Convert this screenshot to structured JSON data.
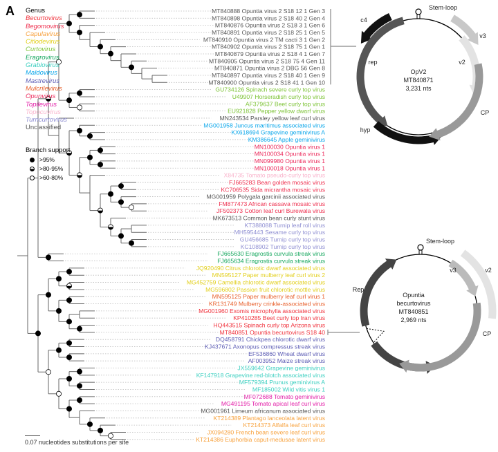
{
  "panel_label": "A",
  "legend": {
    "title": "Genus",
    "genera": [
      {
        "name": "Becurtovirus",
        "color": "#f0323c"
      },
      {
        "name": "Begomovirus",
        "color": "#ee2f4e"
      },
      {
        "name": "Capulavirus",
        "color": "#f7a13c"
      },
      {
        "name": "Citlodevirus",
        "color": "#e2cf1c"
      },
      {
        "name": "Curtovirus",
        "color": "#7dc336"
      },
      {
        "name": "Eragrovirus",
        "color": "#13a65c"
      },
      {
        "name": "Grablovirus",
        "color": "#3ccfc0"
      },
      {
        "name": "Maldovirus",
        "color": "#0aa6ea"
      },
      {
        "name": "Mastrevirus",
        "color": "#5c5cb4"
      },
      {
        "name": "Mulcrilevirus",
        "color": "#e8602c"
      },
      {
        "name": "Opunvirus",
        "color": "#ec2b5c"
      },
      {
        "name": "Topilevirus",
        "color": "#e21aa6"
      },
      {
        "name": "Topocuvirus",
        "color": "#f9b4cc"
      },
      {
        "name": "Turncurtovirus",
        "color": "#8f8fd2"
      },
      {
        "name": "Unclassified",
        "color": "#555555"
      }
    ]
  },
  "branch_support": {
    "title": "Branch support",
    "items": [
      {
        "symbol": "filled",
        "label": ">95%"
      },
      {
        "symbol": "half",
        "label": ">80-95%"
      },
      {
        "symbol": "open",
        "label": ">60-80%"
      }
    ]
  },
  "leaves": [
    [
      "MT840888 Opuntia virus 2 S18 12 1 Gen 3",
      "Unclassified"
    ],
    [
      "MT840898 Opuntia virus 2 S18 40 2 Gen 4",
      "Unclassified"
    ],
    [
      "MT840876 Opuntia virus 2 S18 3 1 Gen 6",
      "Unclassified"
    ],
    [
      "MT840891 Opuntia virus 2 S18 25 1 Gen 5",
      "Unclassified"
    ],
    [
      "MT840910 Opuntia virus 2 TM cacti 3 1 Gen 2",
      "Unclassified"
    ],
    [
      "MT840902 Opuntia virus 2 S18 75 1 Gen 1",
      "Unclassified"
    ],
    [
      "MT840879 Opuntia virus 2 S18 4 1 Gen 7",
      "Unclassified"
    ],
    [
      "MT840905 Opuntia virus 2 S18 75 4 Gen 11",
      "Unclassified"
    ],
    [
      "MT840871 Opuntia virus 2 DBG 56 Gen 8",
      "Unclassified"
    ],
    [
      "MT840897 Opuntia virus 2 S18 40 1 Gen 9",
      "Unclassified"
    ],
    [
      "MT840900 Opuntia virus 2 S18 41 1 Gen 10",
      "Unclassified"
    ],
    [
      "GU734126 Spinach severe curly top virus",
      "Curtovirus"
    ],
    [
      "U49907 Horseradish curly top virus",
      "Curtovirus"
    ],
    [
      "AF379637 Beet curly top virus",
      "Curtovirus"
    ],
    [
      "EU921828 Pepper yellow dwarf virus",
      "Curtovirus"
    ],
    [
      "MN243534 Parsley yellow leaf curl virus",
      "Unclassified"
    ],
    [
      "MG001958 Juncus maritimus associated virus",
      "Maldovirus"
    ],
    [
      "KX618694 Grapevine geminivirus A",
      "Maldovirus"
    ],
    [
      "KM386645 Apple geminivirus",
      "Maldovirus"
    ],
    [
      "MN100030 Opuntia virus 1",
      "Opunvirus"
    ],
    [
      "MN100034 Opuntia virus 1",
      "Opunvirus"
    ],
    [
      "MN099980 Opuntia virus 1",
      "Opunvirus"
    ],
    [
      "MN100018 Opuntia virus 1",
      "Opunvirus"
    ],
    [
      "X84735 Tomato pseudo-curly top virus",
      "Topocuvirus"
    ],
    [
      "FJ665283 Bean golden mosaic virus",
      "Begomovirus"
    ],
    [
      "KC706535 Sida micrantha mosaic virus",
      "Begomovirus"
    ],
    [
      "MG001959 Polygala garcinii associated virus",
      "Unclassified"
    ],
    [
      "FM877473 African cassava mosaic virus",
      "Begomovirus"
    ],
    [
      "JF502373 Cotton leaf curl Burewala virus",
      "Begomovirus"
    ],
    [
      "MK673513 Common bean curly stunt virus",
      "Unclassified"
    ],
    [
      "KT388088 Turnip leaf roll virus",
      "Turncurtovirus"
    ],
    [
      "MH595443 Sesame curly top virus",
      "Turncurtovirus"
    ],
    [
      "GU456685 Turnip curly top virus",
      "Turncurtovirus"
    ],
    [
      "KC108902 Turnip curly top virus",
      "Turncurtovirus"
    ],
    [
      "FJ665630 Eragrostis curvula streak virus",
      "Eragrovirus"
    ],
    [
      "FJ665634 Eragrostis curvula streak virus",
      "Eragrovirus"
    ],
    [
      "JQ920490 Citrus chlorotic dwarf associated virus",
      "Citlodevirus"
    ],
    [
      "MN595127 Paper mulberry leaf curl virus 2",
      "Citlodevirus"
    ],
    [
      "MG452759 Camellia chlorotic dwarf associated virus",
      "Citlodevirus"
    ],
    [
      "MG596802 Passion fruit chlorotic mottle virus",
      "Citlodevirus"
    ],
    [
      "MN595125 Paper mulberry leaf curl virus 1",
      "Mulcrilevirus"
    ],
    [
      "KR131749 Mulberry crinkle-associated virus",
      "Mulcrilevirus"
    ],
    [
      "MG001960 Exomis microphylla associated virus",
      "Becurtovirus"
    ],
    [
      "KP410285 Beet curly top Iran virus",
      "Becurtovirus"
    ],
    [
      "HQ443515 Spinach curly top Arizona virus",
      "Becurtovirus"
    ],
    [
      "MT840851 Opuntia becurtovirus S18 40",
      "Becurtovirus"
    ],
    [
      "DQ458791 Chickpea chlorotic dwarf virus",
      "Mastrevirus"
    ],
    [
      "KJ437671 Axonopus compressus streak virus",
      "Mastrevirus"
    ],
    [
      "EF536860 Wheat dwarf virus",
      "Mastrevirus"
    ],
    [
      "AF003952 Maize streak virus",
      "Mastrevirus"
    ],
    [
      "JX559642 Grapevine geminivirus",
      "Grablovirus"
    ],
    [
      "KF147918 Grapevine red-blotch associated virus",
      "Grablovirus"
    ],
    [
      "MF579394 Prunus geminivirus A",
      "Grablovirus"
    ],
    [
      "MF185002 Wild vitis virus 1",
      "Grablovirus"
    ],
    [
      "MF072688 Tomato geminivirus",
      "Topilevirus"
    ],
    [
      "MG491195 Tomato apical leaf curl virus",
      "Topilevirus"
    ],
    [
      "MG001961 Limeum africanum associated virus",
      "Unclassified"
    ],
    [
      "KT214389 Plantago lanceolata latent virus",
      "Capulavirus"
    ],
    [
      "KT214373 Alfalfa leaf curl virus",
      "Capulavirus"
    ],
    [
      "JX094280 French bean severe leaf curl virus",
      "Capulavirus"
    ],
    [
      "KT214386 Euphorbia caput-medusae latent virus",
      "Capulavirus"
    ]
  ],
  "scale_bar": "0.07 nucleotides substitutions per site",
  "genome_maps": [
    {
      "name": "OpV2",
      "accession": "MT840871",
      "length": "3,231 nts",
      "stem_loop": "Stem-loop",
      "features": [
        "c4",
        "rep",
        "hyp",
        "v3",
        "v2",
        "CP"
      ]
    },
    {
      "name": "Opuntia becurtovirus",
      "name_line1": "Opuntia",
      "name_line2": "becurtovirus",
      "accession": "MT840851",
      "length": "2,969 nts",
      "stem_loop": "Stem-loop",
      "features": [
        "Rep",
        "v3",
        "v2",
        "CP"
      ]
    }
  ]
}
